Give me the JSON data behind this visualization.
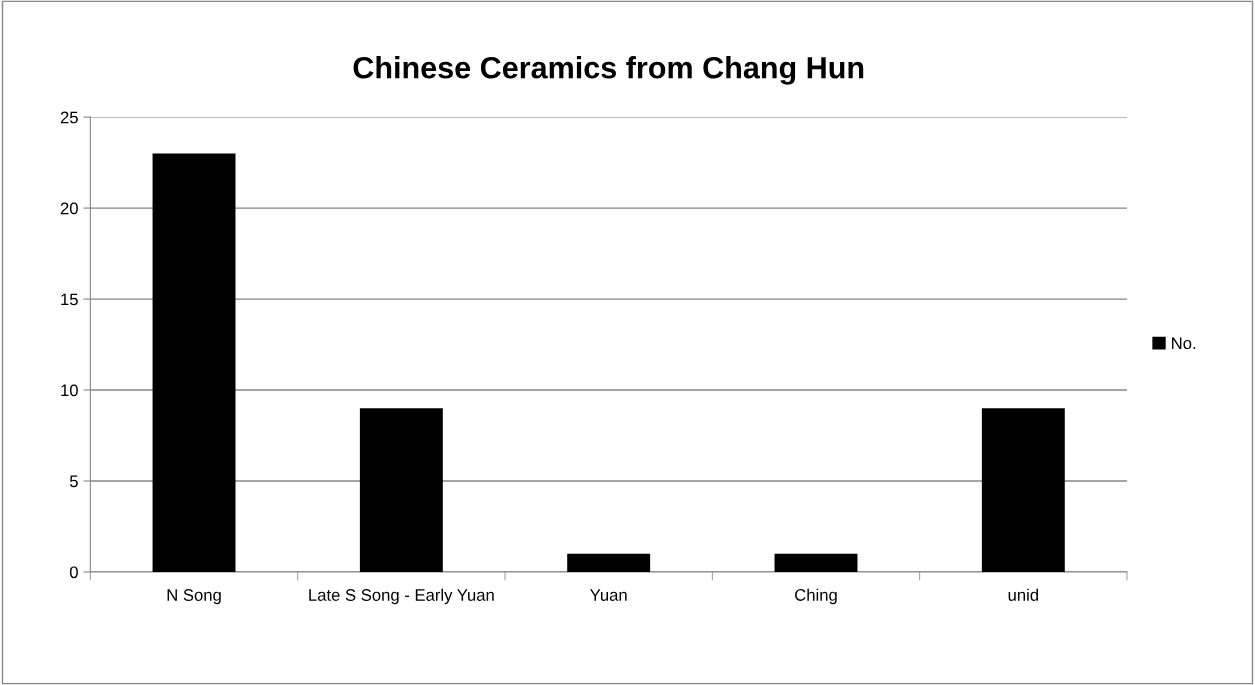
{
  "chart_data": {
    "type": "bar",
    "title": "Chinese Ceramics from Chang Hun",
    "categories": [
      "N Song",
      "Late S Song - Early Yuan",
      "Yuan",
      "Ching",
      "unid"
    ],
    "series": [
      {
        "name": "No.",
        "color": "#000000",
        "values": [
          23,
          9,
          1,
          1,
          9
        ]
      }
    ],
    "ylim": [
      0,
      25
    ],
    "yticks": [
      0,
      5,
      10,
      15,
      20,
      25
    ],
    "grid": "y",
    "legend": "right"
  }
}
